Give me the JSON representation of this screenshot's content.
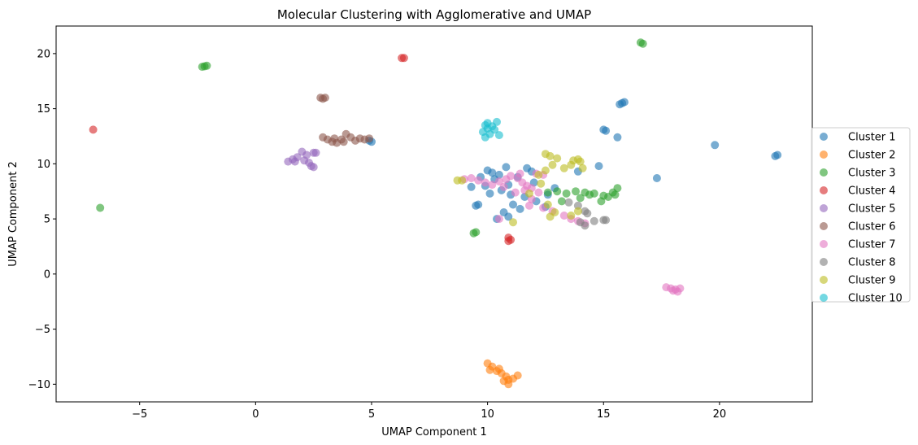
{
  "chart_data": {
    "type": "scatter",
    "title": "Molecular Clustering with Agglomerative and UMAP",
    "xlabel": "UMAP Component 1",
    "ylabel": "UMAP Component 2",
    "xlim": [
      -8.6,
      24.0
    ],
    "ylim": [
      -11.6,
      22.5
    ],
    "xticks": [
      -5,
      0,
      5,
      10,
      15,
      20
    ],
    "yticks": [
      -10,
      -5,
      0,
      5,
      10,
      15,
      20
    ],
    "xtick_labels": [
      "−5",
      "0",
      "5",
      "10",
      "15",
      "20"
    ],
    "ytick_labels": [
      "−10",
      "−5",
      "0",
      "5",
      "10",
      "15",
      "20"
    ],
    "legend_position": "right",
    "grid": false,
    "series": [
      {
        "name": "Cluster 1",
        "color": "#1f77b4",
        "points": [
          [
            5.0,
            12.0
          ],
          [
            4.9,
            12.1
          ],
          [
            9.5,
            6.2
          ],
          [
            9.6,
            6.3
          ],
          [
            10.0,
            9.4
          ],
          [
            10.2,
            9.2
          ],
          [
            10.5,
            9.0
          ],
          [
            10.8,
            9.7
          ],
          [
            10.3,
            8.6
          ],
          [
            9.9,
            8.0
          ],
          [
            10.6,
            7.6
          ],
          [
            11.0,
            7.2
          ],
          [
            11.3,
            8.8
          ],
          [
            11.7,
            9.6
          ],
          [
            12.0,
            8.3
          ],
          [
            11.6,
            7.0
          ],
          [
            11.1,
            6.3
          ],
          [
            10.9,
            5.2
          ],
          [
            10.4,
            5.0
          ],
          [
            10.7,
            5.6
          ],
          [
            11.4,
            5.9
          ],
          [
            12.1,
            6.6
          ],
          [
            12.6,
            7.2
          ],
          [
            12.9,
            7.8
          ],
          [
            12.5,
            6.1
          ],
          [
            10.1,
            7.3
          ],
          [
            9.7,
            8.8
          ],
          [
            9.3,
            7.9
          ],
          [
            10.9,
            8.1
          ],
          [
            11.9,
            9.3
          ],
          [
            13.9,
            9.3
          ],
          [
            14.8,
            9.8
          ],
          [
            15.0,
            13.1
          ],
          [
            15.1,
            13.0
          ],
          [
            15.6,
            12.4
          ],
          [
            15.7,
            15.4
          ],
          [
            15.8,
            15.5
          ],
          [
            15.9,
            15.6
          ],
          [
            17.3,
            8.7
          ],
          [
            19.8,
            11.7
          ],
          [
            22.4,
            10.7
          ],
          [
            22.5,
            10.8
          ]
        ]
      },
      {
        "name": "Cluster 2",
        "color": "#ff7f0e",
        "points": [
          [
            10.0,
            -8.1
          ],
          [
            10.2,
            -8.4
          ],
          [
            10.1,
            -8.7
          ],
          [
            10.4,
            -8.8
          ],
          [
            10.6,
            -9.0
          ],
          [
            10.8,
            -9.3
          ],
          [
            10.7,
            -9.7
          ],
          [
            10.9,
            -10.0
          ],
          [
            11.1,
            -9.5
          ],
          [
            11.3,
            -9.2
          ],
          [
            10.5,
            -8.6
          ],
          [
            10.9,
            -9.6
          ]
        ]
      },
      {
        "name": "Cluster 3",
        "color": "#2ca02c",
        "points": [
          [
            -2.3,
            18.8
          ],
          [
            -2.1,
            18.9
          ],
          [
            -2.2,
            18.85
          ],
          [
            -6.7,
            6.0
          ],
          [
            9.4,
            3.7
          ],
          [
            9.5,
            3.8
          ],
          [
            16.6,
            21.0
          ],
          [
            16.7,
            20.9
          ],
          [
            12.6,
            7.4
          ],
          [
            13.0,
            7.5
          ],
          [
            13.4,
            7.3
          ],
          [
            13.8,
            7.5
          ],
          [
            14.2,
            7.4
          ],
          [
            14.6,
            7.3
          ],
          [
            15.0,
            7.1
          ],
          [
            15.4,
            7.4
          ],
          [
            15.6,
            7.8
          ],
          [
            15.5,
            7.2
          ],
          [
            14.9,
            6.6
          ],
          [
            14.4,
            7.2
          ],
          [
            13.2,
            6.6
          ],
          [
            14.0,
            6.9
          ],
          [
            15.2,
            7.0
          ]
        ]
      },
      {
        "name": "Cluster 4",
        "color": "#d62728",
        "points": [
          [
            -7.0,
            13.1
          ],
          [
            6.3,
            19.6
          ],
          [
            6.4,
            19.6
          ],
          [
            10.9,
            3.3
          ],
          [
            11.0,
            3.1
          ],
          [
            10.9,
            3.0
          ]
        ]
      },
      {
        "name": "Cluster 5",
        "color": "#9467bd",
        "points": [
          [
            1.4,
            10.2
          ],
          [
            1.6,
            10.4
          ],
          [
            1.8,
            10.6
          ],
          [
            2.0,
            11.1
          ],
          [
            2.1,
            10.3
          ],
          [
            2.3,
            10.1
          ],
          [
            2.4,
            9.8
          ],
          [
            2.5,
            9.7
          ],
          [
            2.5,
            11.0
          ],
          [
            2.6,
            11.0
          ],
          [
            2.2,
            10.8
          ],
          [
            1.7,
            10.2
          ]
        ]
      },
      {
        "name": "Cluster 6",
        "color": "#8c564b",
        "points": [
          [
            2.8,
            16.0
          ],
          [
            2.9,
            15.9
          ],
          [
            3.0,
            16.0
          ],
          [
            2.9,
            12.4
          ],
          [
            3.1,
            12.2
          ],
          [
            3.3,
            12.0
          ],
          [
            3.5,
            11.9
          ],
          [
            3.7,
            12.2
          ],
          [
            3.9,
            12.7
          ],
          [
            4.1,
            12.4
          ],
          [
            4.3,
            12.1
          ],
          [
            4.5,
            12.3
          ],
          [
            4.7,
            12.2
          ],
          [
            4.9,
            12.3
          ],
          [
            3.8,
            12.0
          ],
          [
            3.4,
            12.3
          ]
        ]
      },
      {
        "name": "Cluster 7",
        "color": "#e377c2",
        "points": [
          [
            9.0,
            8.6
          ],
          [
            9.3,
            8.7
          ],
          [
            9.6,
            8.5
          ],
          [
            9.9,
            8.3
          ],
          [
            10.2,
            8.1
          ],
          [
            10.5,
            8.4
          ],
          [
            10.8,
            8.6
          ],
          [
            11.0,
            8.9
          ],
          [
            11.3,
            8.7
          ],
          [
            11.5,
            8.3
          ],
          [
            11.7,
            8.0
          ],
          [
            11.9,
            7.8
          ],
          [
            11.6,
            7.6
          ],
          [
            11.2,
            7.4
          ],
          [
            11.9,
            6.8
          ],
          [
            11.8,
            6.2
          ],
          [
            12.4,
            6.0
          ],
          [
            12.8,
            5.7
          ],
          [
            13.3,
            5.3
          ],
          [
            13.6,
            5.0
          ],
          [
            13.9,
            4.8
          ],
          [
            14.2,
            4.6
          ],
          [
            10.5,
            5.0
          ],
          [
            17.7,
            -1.2
          ],
          [
            17.9,
            -1.3
          ],
          [
            18.1,
            -1.4
          ],
          [
            18.2,
            -1.6
          ],
          [
            18.0,
            -1.5
          ],
          [
            18.3,
            -1.3
          ],
          [
            12.1,
            9.1
          ],
          [
            12.4,
            9.0
          ],
          [
            11.4,
            9.1
          ],
          [
            10.7,
            7.9
          ],
          [
            12.2,
            7.4
          ]
        ]
      },
      {
        "name": "Cluster 8",
        "color": "#7f7f7f",
        "points": [
          [
            13.5,
            6.5
          ],
          [
            13.9,
            6.2
          ],
          [
            14.2,
            5.7
          ],
          [
            14.3,
            5.5
          ],
          [
            14.6,
            4.8
          ],
          [
            14.2,
            4.4
          ],
          [
            15.0,
            4.9
          ],
          [
            15.1,
            4.9
          ],
          [
            14.0,
            4.7
          ]
        ]
      },
      {
        "name": "Cluster 9",
        "color": "#bcbd22",
        "points": [
          [
            8.7,
            8.5
          ],
          [
            8.9,
            8.5
          ],
          [
            12.5,
            10.9
          ],
          [
            12.7,
            10.7
          ],
          [
            13.0,
            10.5
          ],
          [
            13.3,
            9.6
          ],
          [
            13.6,
            9.9
          ],
          [
            13.7,
            10.3
          ],
          [
            13.9,
            10.4
          ],
          [
            14.0,
            10.2
          ],
          [
            14.1,
            9.6
          ],
          [
            12.8,
            9.9
          ],
          [
            12.5,
            9.4
          ],
          [
            12.2,
            9.0
          ],
          [
            11.8,
            7.3
          ],
          [
            12.6,
            6.3
          ],
          [
            12.9,
            5.6
          ],
          [
            12.7,
            5.2
          ],
          [
            13.6,
            5.3
          ],
          [
            13.9,
            5.7
          ],
          [
            11.1,
            4.7
          ],
          [
            12.3,
            8.2
          ]
        ]
      },
      {
        "name": "Cluster 10",
        "color": "#17becf",
        "points": [
          [
            9.8,
            12.9
          ],
          [
            9.9,
            13.5
          ],
          [
            10.0,
            13.7
          ],
          [
            10.2,
            13.4
          ],
          [
            10.4,
            13.8
          ],
          [
            10.3,
            13.1
          ],
          [
            10.5,
            12.6
          ],
          [
            9.9,
            12.4
          ],
          [
            10.1,
            12.7
          ],
          [
            10.0,
            13.2
          ]
        ]
      }
    ]
  }
}
